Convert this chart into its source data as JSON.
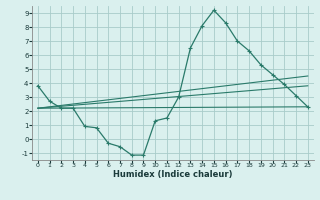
{
  "xlabel": "Humidex (Indice chaleur)",
  "bg_color": "#daf0ee",
  "grid_color": "#a8ccca",
  "line_color": "#2a7a6a",
  "xlim": [
    -0.5,
    23.5
  ],
  "ylim": [
    -1.5,
    9.5
  ],
  "xticks": [
    0,
    1,
    2,
    3,
    4,
    5,
    6,
    7,
    8,
    9,
    10,
    11,
    12,
    13,
    14,
    15,
    16,
    17,
    18,
    19,
    20,
    21,
    22,
    23
  ],
  "yticks": [
    -1,
    0,
    1,
    2,
    3,
    4,
    5,
    6,
    7,
    8,
    9
  ],
  "line1_x": [
    0,
    1,
    2,
    3,
    4,
    5,
    6,
    7,
    8,
    9,
    10,
    11,
    12,
    13,
    14,
    15,
    16,
    17,
    18,
    19,
    20,
    21,
    22,
    23
  ],
  "line1_y": [
    3.8,
    2.7,
    2.2,
    2.2,
    0.9,
    0.8,
    -0.3,
    -0.55,
    -1.15,
    -1.15,
    1.3,
    1.5,
    3.0,
    6.5,
    8.1,
    9.2,
    8.3,
    7.0,
    6.3,
    5.3,
    4.6,
    3.9,
    3.1,
    2.3
  ],
  "line2_x": [
    0,
    23
  ],
  "line2_y": [
    2.2,
    2.3
  ],
  "line3_x": [
    0,
    23
  ],
  "line3_y": [
    2.2,
    3.8
  ],
  "line4_x": [
    0,
    23
  ],
  "line4_y": [
    2.2,
    4.5
  ]
}
